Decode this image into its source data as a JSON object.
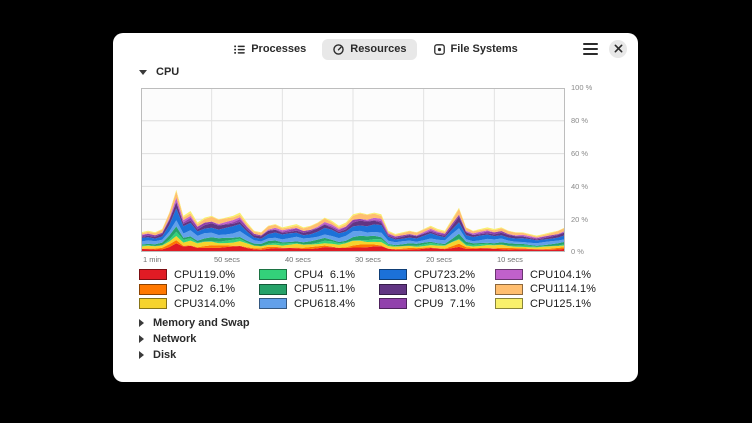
{
  "header": {
    "tabs": [
      {
        "label": "Processes"
      },
      {
        "label": "Resources"
      },
      {
        "label": "File Systems"
      }
    ],
    "active_tab": "Resources"
  },
  "sections": {
    "cpu": "CPU",
    "memory": "Memory and Swap",
    "network": "Network",
    "disk": "Disk"
  },
  "chart_data": {
    "type": "area",
    "stacked": true,
    "title": "CPU",
    "xlabel": "",
    "ylabel": "",
    "ylim": [
      0,
      100
    ],
    "grid": true,
    "legend_position": "bottom",
    "x_ticks": [
      "1 min",
      "50 secs",
      "40 secs",
      "30 secs",
      "20 secs",
      "10 secs"
    ],
    "y_ticks": [
      "100 %",
      "80 %",
      "60 %",
      "40 %",
      "20 %",
      "0 %"
    ],
    "total_usage_percent": [
      12,
      13,
      12,
      14,
      24,
      38,
      22,
      25,
      18,
      21,
      22,
      20,
      21,
      22,
      24,
      18,
      13,
      12,
      16,
      17,
      15,
      16,
      17,
      15,
      16,
      18,
      21,
      19,
      16,
      18,
      23,
      24,
      23,
      24,
      23,
      13,
      11,
      12,
      13,
      12,
      14,
      16,
      14,
      13,
      20,
      27,
      15,
      13,
      14,
      15,
      14,
      15,
      13,
      12,
      12,
      11,
      10,
      11,
      12,
      13,
      15
    ],
    "series": [
      {
        "name": "CPU1",
        "value": "19.0%",
        "percent": 19.0,
        "color": "#e01b24"
      },
      {
        "name": "CPU2",
        "value": "6.1%",
        "percent": 6.1,
        "color": "#ff7800"
      },
      {
        "name": "CPU3",
        "value": "14.0%",
        "percent": 14.0,
        "color": "#f6d32d"
      },
      {
        "name": "CPU4",
        "value": "6.1%",
        "percent": 6.1,
        "color": "#33d17a"
      },
      {
        "name": "CPU5",
        "value": "11.1%",
        "percent": 11.1,
        "color": "#26a269"
      },
      {
        "name": "CPU6",
        "value": "18.4%",
        "percent": 18.4,
        "color": "#62a0ea"
      },
      {
        "name": "CPU7",
        "value": "23.2%",
        "percent": 23.2,
        "color": "#1c71d8"
      },
      {
        "name": "CPU8",
        "value": "13.0%",
        "percent": 13.0,
        "color": "#613583"
      },
      {
        "name": "CPU9",
        "value": "7.1%",
        "percent": 7.1,
        "color": "#9141ac"
      },
      {
        "name": "CPU10",
        "value": "4.1%",
        "percent": 4.1,
        "color": "#c061cb"
      },
      {
        "name": "CPU11",
        "value": "14.1%",
        "percent": 14.1,
        "color": "#ffbe6f"
      },
      {
        "name": "CPU12",
        "value": "5.1%",
        "percent": 5.1,
        "color": "#f9f06b"
      }
    ]
  }
}
